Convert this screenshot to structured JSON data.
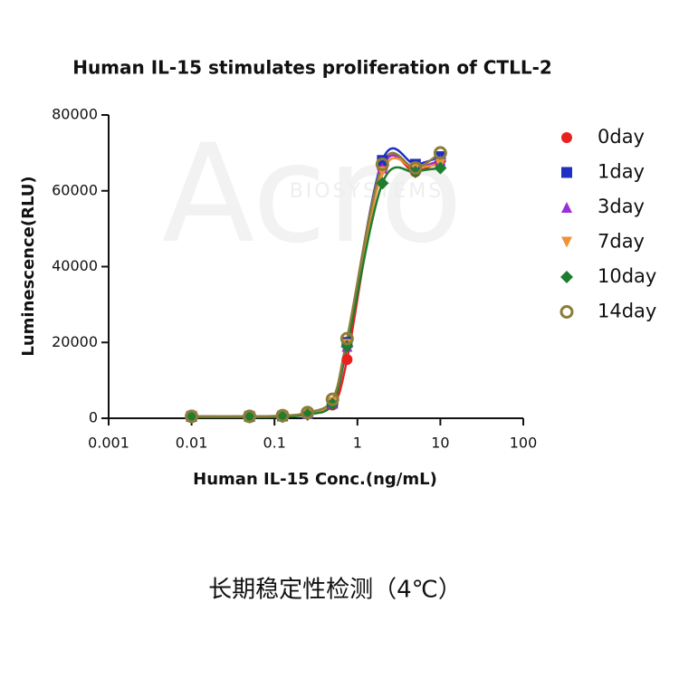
{
  "chart_data": {
    "type": "line",
    "title": "Human IL-15 stimulates proliferation of CTLL-2",
    "x_label": "Human IL-15 Conc.(ng/mL)",
    "y_label": "Luminescence(RLU)",
    "caption": "长期稳定性检测（4℃）",
    "watermark": [
      "Acro",
      "BIOSYSTEMS"
    ],
    "xscale": "log",
    "xlim": [
      0.001,
      100
    ],
    "xticks": [
      0.001,
      0.01,
      0.1,
      1,
      10,
      100
    ],
    "ylim": [
      0,
      80000
    ],
    "yticks": [
      0,
      20000,
      40000,
      60000,
      80000
    ],
    "x": [
      0.01,
      0.05,
      0.125,
      0.25,
      0.5,
      0.75,
      2,
      5,
      10
    ],
    "series": [
      {
        "name": "0day",
        "color": "#e8211f",
        "marker": "circle",
        "values": [
          500,
          500,
          600,
          1200,
          3500,
          15500,
          66000,
          65000,
          68000
        ]
      },
      {
        "name": "1day",
        "color": "#1f2fc4",
        "marker": "square",
        "values": [
          500,
          500,
          600,
          1200,
          4000,
          20000,
          68000,
          67000,
          69000
        ]
      },
      {
        "name": "3day",
        "color": "#9b2fd6",
        "marker": "triangle-up",
        "values": [
          500,
          500,
          600,
          1200,
          4000,
          19000,
          66000,
          66000,
          68000
        ]
      },
      {
        "name": "7day",
        "color": "#f0923a",
        "marker": "triangle-down",
        "values": [
          500,
          500,
          600,
          1200,
          4200,
          19500,
          65000,
          66000,
          67000
        ]
      },
      {
        "name": "10day",
        "color": "#1e7d2e",
        "marker": "diamond",
        "values": [
          300,
          300,
          400,
          1000,
          3800,
          19000,
          62000,
          65000,
          66000
        ]
      },
      {
        "name": "14day",
        "color": "#8b7d3a",
        "marker": "ring",
        "values": [
          500,
          500,
          700,
          1500,
          5000,
          21000,
          67000,
          66000,
          70000
        ]
      }
    ]
  }
}
